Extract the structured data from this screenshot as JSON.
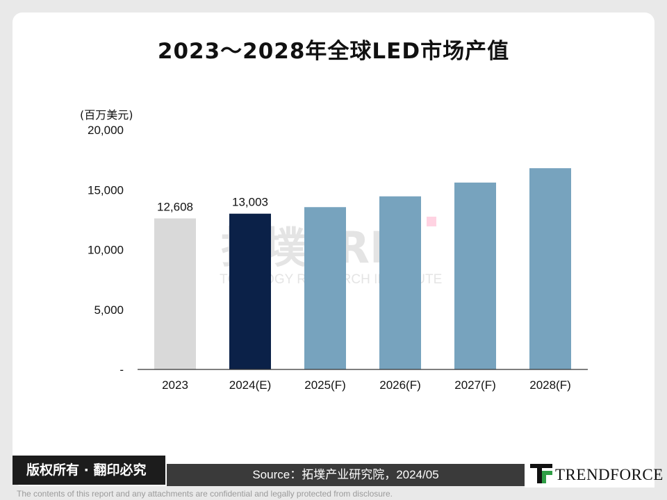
{
  "title": "2023～2028年全球LED市场产值",
  "watermark": {
    "cn": "拓墣TRI",
    "en": "TOPOLOGY RESEARCH INSTITUTE"
  },
  "footer": {
    "copyright": "版权所有 · 翻印必究",
    "source": "Source：拓墣产业研究院，2024/05",
    "logo": "TRENDFORCE",
    "disclaimer": "The contents of this report and any attachments are confidential and legally protected from disclosure."
  },
  "colors": {
    "actual": "#d9d9d9",
    "estimate": "#0b2148",
    "forecast": "#77a3be",
    "logo_green": "#2f9e45"
  },
  "chart_data": {
    "type": "bar",
    "title": "2023～2028年全球LED市场产值",
    "ylabel": "(百万美元)",
    "ylim": [
      0,
      20000
    ],
    "yticks": [
      {
        "value": 0,
        "label": "-"
      },
      {
        "value": 5000,
        "label": "5,000"
      },
      {
        "value": 10000,
        "label": "10,000"
      },
      {
        "value": 15000,
        "label": "15,000"
      },
      {
        "value": 20000,
        "label": "20,000"
      }
    ],
    "categories": [
      "2023",
      "2024(E)",
      "2025(F)",
      "2026(F)",
      "2027(F)",
      "2028(F)"
    ],
    "values": [
      12608,
      13003,
      13550,
      14450,
      15600,
      16800
    ],
    "data_labels": [
      "12,608",
      "13,003",
      "",
      "",
      "",
      ""
    ],
    "bar_colors": [
      "#d9d9d9",
      "#0b2148",
      "#77a3be",
      "#77a3be",
      "#77a3be",
      "#77a3be"
    ],
    "grid": false,
    "legend": "none"
  }
}
